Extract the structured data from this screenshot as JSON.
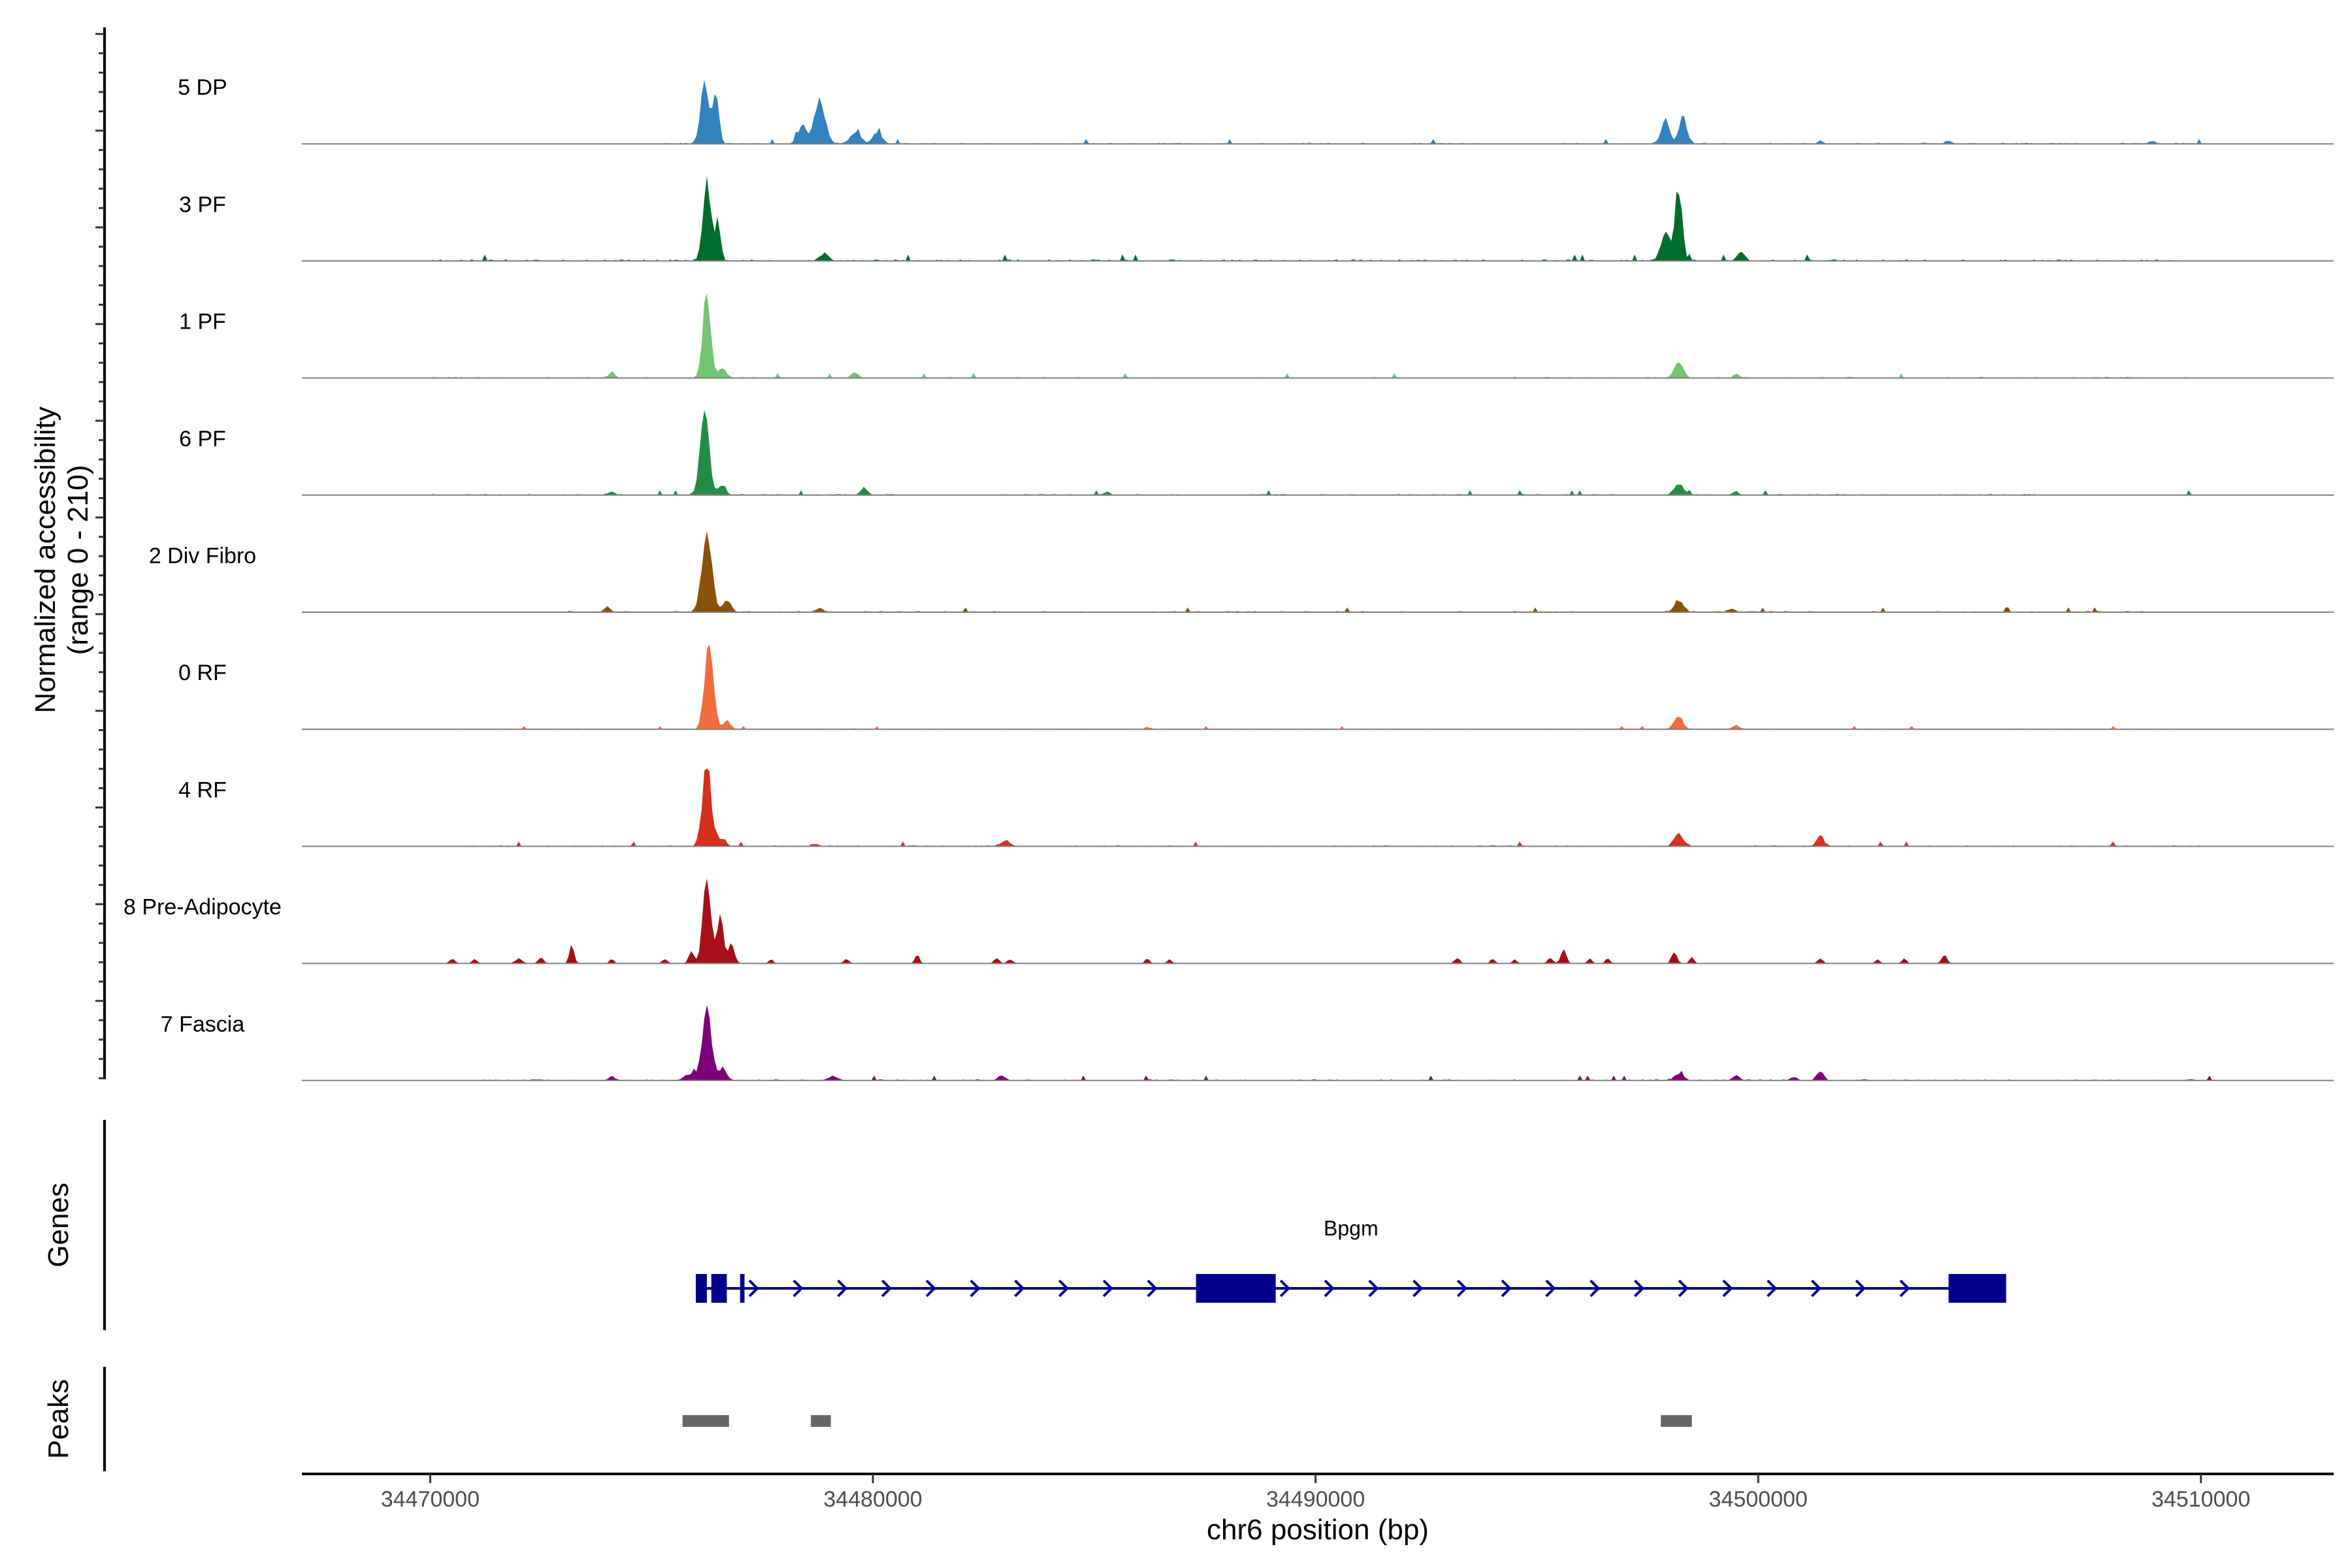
{
  "chart_data": {
    "type": "area",
    "description_panels": [
      "coverage",
      "genes",
      "peaks"
    ],
    "ylabel_line1": "Normalized accessibility",
    "ylabel_line2": "(range 0 - 210)",
    "yrange": [
      0,
      210
    ],
    "xlabel": "chr6 position (bp)",
    "xlim": [
      34467100,
      34513000
    ],
    "xticks": [
      34470000,
      34480000,
      34490000,
      34500000,
      34510000
    ],
    "xtick_labels": [
      "34470000",
      "34480000",
      "34490000",
      "34500000",
      "34510000"
    ],
    "tracks": [
      {
        "name": "5 DP",
        "color": "#3182bd",
        "noise": 3,
        "noise_range": [
          34475000,
          34510000
        ],
        "peaks": [
          [
            34476200,
            150,
            95
          ],
          [
            34476450,
            130,
            70
          ],
          [
            34478800,
            110,
            120
          ],
          [
            34478400,
            45,
            100
          ],
          [
            34479600,
            28,
            120
          ],
          [
            34480100,
            30,
            100
          ],
          [
            34497900,
            65,
            90
          ],
          [
            34498300,
            65,
            90
          ],
          [
            34501400,
            8,
            60
          ],
          [
            34504300,
            6,
            80
          ],
          [
            34508900,
            7,
            80
          ]
        ]
      },
      {
        "name": "3 PF",
        "color": "#006d2c",
        "noise": 4,
        "noise_range": [
          34470000,
          34510000
        ],
        "peaks": [
          [
            34476250,
            200,
            90
          ],
          [
            34476500,
            100,
            60
          ],
          [
            34478900,
            18,
            100
          ],
          [
            34498200,
            180,
            80
          ],
          [
            34497900,
            70,
            100
          ],
          [
            34499600,
            22,
            80
          ]
        ]
      },
      {
        "name": "1 PF",
        "color": "#74c476",
        "noise": 3,
        "noise_range": [
          34470000,
          34510000
        ],
        "peaks": [
          [
            34476250,
            205,
            90
          ],
          [
            34476600,
            25,
            80
          ],
          [
            34474100,
            14,
            70
          ],
          [
            34479600,
            12,
            80
          ],
          [
            34498200,
            40,
            100
          ],
          [
            34499500,
            10,
            60
          ]
        ]
      },
      {
        "name": "6 PF",
        "color": "#238b45",
        "noise": 3,
        "noise_range": [
          34470000,
          34510000
        ],
        "peaks": [
          [
            34476200,
            200,
            100
          ],
          [
            34476600,
            25,
            80
          ],
          [
            34474100,
            10,
            70
          ],
          [
            34479800,
            18,
            80
          ],
          [
            34498200,
            28,
            100
          ],
          [
            34499500,
            8,
            60
          ],
          [
            34485300,
            8,
            60
          ]
        ]
      },
      {
        "name": "2 Div Fibro",
        "color": "#8c510a",
        "noise": 3,
        "noise_range": [
          34472000,
          34510500
        ],
        "peaks": [
          [
            34476250,
            205,
            110
          ],
          [
            34476700,
            30,
            90
          ],
          [
            34474000,
            14,
            70
          ],
          [
            34478800,
            8,
            100
          ],
          [
            34498200,
            30,
            100
          ],
          [
            34499400,
            8,
            80
          ]
        ]
      },
      {
        "name": "0 RF",
        "color": "#f16d3f",
        "noise": 2,
        "noise_range": [
          34470500,
          34510000
        ],
        "peaks": [
          [
            34476300,
            205,
            100
          ],
          [
            34476700,
            20,
            80
          ],
          [
            34498200,
            30,
            100
          ],
          [
            34499500,
            10,
            80
          ],
          [
            34486200,
            5,
            60
          ]
        ]
      },
      {
        "name": "4 RF",
        "color": "#d7301f",
        "noise": 3,
        "noise_range": [
          34470500,
          34510000
        ],
        "peaks": [
          [
            34476250,
            205,
            100
          ],
          [
            34476600,
            20,
            80
          ],
          [
            34483000,
            15,
            100
          ],
          [
            34498200,
            30,
            100
          ],
          [
            34501400,
            26,
            80
          ],
          [
            34478700,
            6,
            80
          ]
        ]
      },
      {
        "name": "8 Pre-Adipocyte",
        "color": "#a50f15",
        "noise": 0,
        "noise_range": [
          34470500,
          34504000
        ],
        "peaks": [
          [
            34476250,
            200,
            90
          ],
          [
            34476550,
            120,
            70
          ],
          [
            34476800,
            50,
            70
          ],
          [
            34475900,
            30,
            60
          ],
          [
            34473200,
            50,
            50
          ],
          [
            34470500,
            12,
            60
          ],
          [
            34471000,
            10,
            60
          ],
          [
            34472000,
            12,
            80
          ],
          [
            34472500,
            14,
            60
          ],
          [
            34474100,
            12,
            50
          ],
          [
            34475300,
            10,
            60
          ],
          [
            34477700,
            10,
            50
          ],
          [
            34479400,
            10,
            60
          ],
          [
            34481000,
            22,
            50
          ],
          [
            34482800,
            14,
            60
          ],
          [
            34483100,
            10,
            60
          ],
          [
            34486200,
            12,
            50
          ],
          [
            34486700,
            10,
            50
          ],
          [
            34493200,
            14,
            60
          ],
          [
            34494000,
            12,
            50
          ],
          [
            34494500,
            10,
            50
          ],
          [
            34495300,
            14,
            60
          ],
          [
            34495600,
            35,
            60
          ],
          [
            34496200,
            12,
            50
          ],
          [
            34496600,
            14,
            50
          ],
          [
            34498100,
            30,
            60
          ],
          [
            34498500,
            15,
            50
          ],
          [
            34501400,
            12,
            60
          ],
          [
            34502700,
            10,
            50
          ],
          [
            34503300,
            12,
            50
          ],
          [
            34504200,
            22,
            60
          ]
        ]
      },
      {
        "name": "7 Fascia",
        "color": "#7a0177",
        "noise": 3,
        "noise_range": [
          34471000,
          34510500
        ],
        "peaks": [
          [
            34476250,
            190,
            100
          ],
          [
            34476600,
            30,
            90
          ],
          [
            34475900,
            15,
            150
          ],
          [
            34474100,
            10,
            70
          ],
          [
            34479100,
            10,
            120
          ],
          [
            34482900,
            12,
            80
          ],
          [
            34498200,
            16,
            100
          ],
          [
            34499500,
            12,
            80
          ],
          [
            34501400,
            22,
            80
          ],
          [
            34500800,
            8,
            80
          ]
        ]
      }
    ],
    "genes_panel_label": "Genes",
    "gene": {
      "name": "Bpgm",
      "color": "#00008b",
      "strand": "+",
      "start": 34476000,
      "end": 34505600,
      "exons": [
        [
          34476000,
          34476250
        ],
        [
          34476350,
          34476700
        ],
        [
          34477000,
          34477100
        ],
        [
          34487300,
          34489100
        ],
        [
          34504300,
          34505600
        ]
      ]
    },
    "peaks_panel_label": "Peaks",
    "peak_color": "#666666",
    "peak_regions": [
      [
        34475700,
        34476750
      ],
      [
        34478600,
        34479050
      ],
      [
        34497800,
        34498500
      ]
    ]
  }
}
